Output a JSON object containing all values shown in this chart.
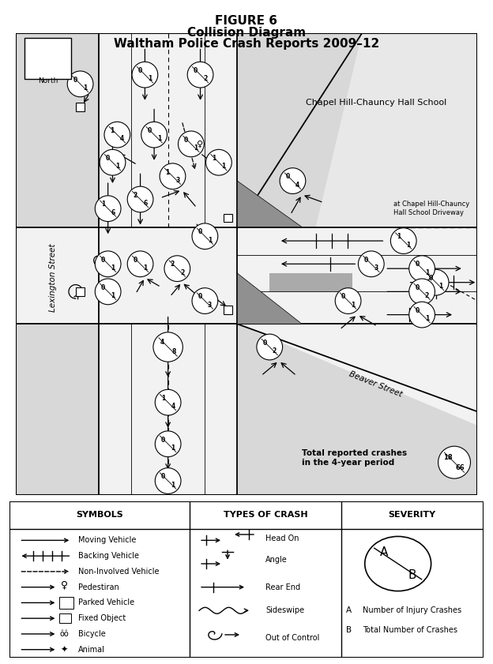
{
  "title_line1": "FIGURE 6",
  "title_line2": "Collision Diagram",
  "title_line3": "Waltham Police Crash Reports 2009–12",
  "bg_color": "#ffffff",
  "chapel_hill_label": "Chapel Hill-Chauncy Hall School",
  "beaver_street_label": "Beaver Street",
  "lexington_street_label": "Lexington Street",
  "driveway_label": "at Chapel Hill-Chauncy\nHall School Driveway",
  "total_label": "Total reported crashes\nin the 4-year period",
  "total_A": "18",
  "total_B": "66",
  "north_label": "North",
  "symbols_header": "SYMBOLS",
  "crash_header": "TYPES OF CRASH",
  "severity_header": "SEVERITY",
  "sym_labels": [
    "Moving Vehicle",
    "Backing Vehicle",
    "Non-Involved Vehicle",
    "Pedestiran",
    "Parked Vehicle",
    "Fixed Object",
    "Bicycle",
    "Animal"
  ],
  "crash_labels": [
    "Head On",
    "Angle",
    "Rear End",
    "Sideswipe",
    "Out of Control"
  ],
  "sev_A_label": "Number of Injury Crashes",
  "sev_B_label": "Total Number of Crashes"
}
